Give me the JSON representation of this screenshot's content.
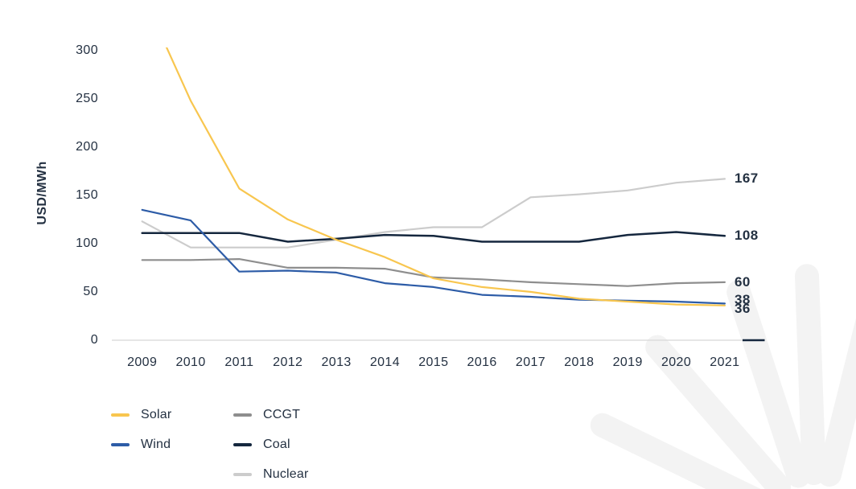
{
  "chart_data": {
    "type": "line",
    "title": "",
    "xlabel": "",
    "ylabel": "USD/MWh",
    "x": [
      2009,
      2010,
      2011,
      2012,
      2013,
      2014,
      2015,
      2016,
      2017,
      2018,
      2019,
      2020,
      2021
    ],
    "y_ticks": [
      0,
      50,
      100,
      150,
      200,
      250,
      300
    ],
    "ylim": [
      0,
      300
    ],
    "grid": false,
    "legend_position": "bottom-left",
    "note": "Solar 2009 value exceeds axis maximum and is clipped at top of plot",
    "series": [
      {
        "name": "Solar",
        "color": "#F8C64F",
        "end_label": "36",
        "values": [
          359,
          248,
          157,
          125,
          104,
          86,
          64,
          55,
          50,
          43,
          40,
          37,
          36
        ]
      },
      {
        "name": "Wind",
        "color": "#2D5CA7",
        "end_label": "38",
        "values": [
          135,
          124,
          71,
          72,
          70,
          59,
          55,
          47,
          45,
          42,
          41,
          40,
          38
        ]
      },
      {
        "name": "CCGT",
        "color": "#8E8E8E",
        "end_label": "60",
        "values": [
          83,
          83,
          84,
          75,
          75,
          74,
          65,
          63,
          60,
          58,
          56,
          59,
          60
        ]
      },
      {
        "name": "Coal",
        "color": "#15273E",
        "end_label": "108",
        "values": [
          111,
          111,
          111,
          102,
          105,
          109,
          108,
          102,
          102,
          102,
          109,
          112,
          108
        ]
      },
      {
        "name": "Nuclear",
        "color": "#CCCCCC",
        "end_label": "167",
        "values": [
          123,
          96,
          96,
          96,
          104,
          112,
          117,
          117,
          148,
          151,
          155,
          163,
          167
        ]
      }
    ]
  },
  "legend": {
    "columns": [
      [
        "Solar",
        "Wind"
      ],
      [
        "CCGT",
        "Coal",
        "Nuclear"
      ]
    ]
  },
  "colors": {
    "text": "#243142",
    "axis_line": "#D8D8D8",
    "axis_end_segment": "#15273E",
    "watermark": "#F3F3F3",
    "background": "#FFFFFF"
  }
}
